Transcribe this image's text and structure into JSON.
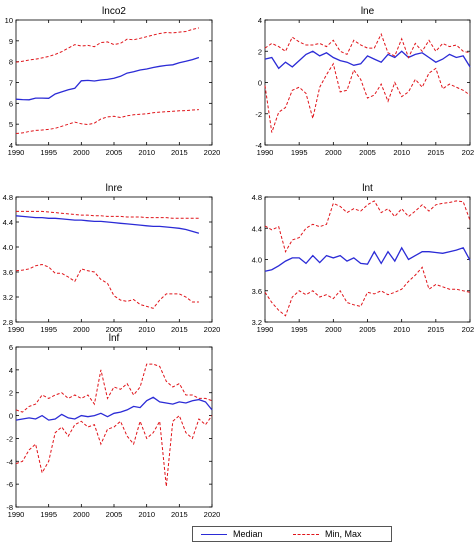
{
  "legend": {
    "median_label": "Median",
    "minmax_label": "Min, Max"
  },
  "colors": {
    "median": "#2b2bd6",
    "minmax": "#e0141a",
    "axis": "#000000"
  },
  "chart_data": [
    {
      "type": "line",
      "title": "lnco2",
      "x": [
        1990,
        1991,
        1992,
        1993,
        1994,
        1995,
        1996,
        1997,
        1998,
        1999,
        2000,
        2001,
        2002,
        2003,
        2004,
        2005,
        2006,
        2007,
        2008,
        2009,
        2010,
        2011,
        2012,
        2013,
        2014,
        2015,
        2016,
        2017,
        2018
      ],
      "xlim": [
        1990,
        2020
      ],
      "xticks": [
        1990,
        1995,
        2000,
        2005,
        2010,
        2015,
        2020
      ],
      "ylim": [
        4,
        10
      ],
      "yticks": [
        4,
        5,
        6,
        7,
        8,
        9,
        10
      ],
      "series": [
        {
          "name": "Median",
          "style": "solid",
          "values": [
            6.2,
            6.18,
            6.17,
            6.25,
            6.25,
            6.24,
            6.45,
            6.55,
            6.65,
            6.72,
            7.08,
            7.1,
            7.07,
            7.12,
            7.15,
            7.2,
            7.3,
            7.45,
            7.52,
            7.6,
            7.65,
            7.72,
            7.78,
            7.82,
            7.85,
            7.95,
            8.02,
            8.1,
            8.2
          ]
        },
        {
          "name": "Min, Max",
          "style": "dashed",
          "values": [
            7.98,
            8.02,
            8.08,
            8.12,
            8.18,
            8.25,
            8.35,
            8.48,
            8.65,
            8.82,
            8.75,
            8.78,
            8.72,
            8.92,
            8.95,
            8.82,
            8.88,
            9.08,
            9.05,
            9.12,
            9.2,
            9.28,
            9.35,
            9.4,
            9.38,
            9.42,
            9.45,
            9.55,
            9.62
          ]
        },
        {
          "name": "Min, Max",
          "style": "dashed",
          "values": [
            4.55,
            4.58,
            4.65,
            4.7,
            4.72,
            4.75,
            4.8,
            4.9,
            5.0,
            5.1,
            5.02,
            4.98,
            5.05,
            5.25,
            5.35,
            5.38,
            5.32,
            5.4,
            5.45,
            5.48,
            5.5,
            5.55,
            5.58,
            5.6,
            5.62,
            5.64,
            5.65,
            5.68,
            5.7
          ]
        }
      ]
    },
    {
      "type": "line",
      "title": "lne",
      "x": [
        1990,
        1991,
        1992,
        1993,
        1994,
        1995,
        1996,
        1997,
        1998,
        1999,
        2000,
        2001,
        2002,
        2003,
        2004,
        2005,
        2006,
        2007,
        2008,
        2009,
        2010,
        2011,
        2012,
        2013,
        2014,
        2015,
        2016,
        2017,
        2018,
        2019,
        2020
      ],
      "xlim": [
        1990,
        2020
      ],
      "xticks": [
        1990,
        1995,
        2000,
        2005,
        2010,
        2015,
        2020
      ],
      "ylim": [
        -4,
        4
      ],
      "yticks": [
        -4,
        -2,
        0,
        2,
        4
      ],
      "series": [
        {
          "name": "Median",
          "style": "solid",
          "values": [
            1.5,
            1.6,
            0.9,
            1.3,
            1.0,
            1.4,
            1.8,
            2.0,
            1.7,
            1.9,
            1.6,
            1.4,
            1.3,
            1.1,
            1.2,
            1.7,
            1.5,
            1.3,
            1.8,
            1.6,
            2.0,
            1.6,
            1.8,
            1.9,
            1.6,
            1.3,
            1.5,
            1.8,
            1.6,
            1.7,
            1.0
          ]
        },
        {
          "name": "Min, Max",
          "style": "dashed",
          "values": [
            2.2,
            2.5,
            2.3,
            2.0,
            2.9,
            2.6,
            2.4,
            2.4,
            2.5,
            2.3,
            2.7,
            2.0,
            1.8,
            2.7,
            2.4,
            2.2,
            2.2,
            3.1,
            1.9,
            1.7,
            2.8,
            1.6,
            2.5,
            2.0,
            2.7,
            2.0,
            2.5,
            2.3,
            2.4,
            2.0,
            1.9
          ]
        },
        {
          "name": "Min, Max",
          "style": "dashed",
          "values": [
            -0.2,
            -3.2,
            -1.9,
            -1.6,
            -0.5,
            -0.3,
            -0.7,
            -2.3,
            -0.3,
            0.5,
            1.2,
            -0.6,
            -0.5,
            0.8,
            0.2,
            -1.0,
            -0.8,
            -0.1,
            -1.2,
            0.0,
            -0.9,
            -0.6,
            0.2,
            -0.3,
            0.6,
            0.9,
            -0.4,
            -0.1,
            -0.3,
            -0.5,
            -0.8
          ]
        }
      ]
    },
    {
      "type": "line",
      "title": "lnre",
      "x": [
        1990,
        1991,
        1992,
        1993,
        1994,
        1995,
        1996,
        1997,
        1998,
        1999,
        2000,
        2001,
        2002,
        2003,
        2004,
        2005,
        2006,
        2007,
        2008,
        2009,
        2010,
        2011,
        2012,
        2013,
        2014,
        2015,
        2016,
        2017,
        2018
      ],
      "xlim": [
        1990,
        2020
      ],
      "xticks": [
        1990,
        1995,
        2000,
        2005,
        2010,
        2015,
        2020
      ],
      "ylim": [
        2.8,
        4.8
      ],
      "yticks": [
        2.8,
        3.2,
        3.6,
        4.0,
        4.4,
        4.8
      ],
      "series": [
        {
          "name": "Median",
          "style": "solid",
          "values": [
            4.5,
            4.49,
            4.48,
            4.47,
            4.47,
            4.46,
            4.46,
            4.45,
            4.44,
            4.43,
            4.43,
            4.42,
            4.41,
            4.41,
            4.4,
            4.39,
            4.38,
            4.37,
            4.36,
            4.35,
            4.34,
            4.33,
            4.33,
            4.32,
            4.31,
            4.3,
            4.28,
            4.25,
            4.22
          ]
        },
        {
          "name": "Min, Max",
          "style": "dashed",
          "values": [
            4.57,
            4.57,
            4.57,
            4.57,
            4.57,
            4.56,
            4.55,
            4.54,
            4.53,
            4.52,
            4.51,
            4.51,
            4.5,
            4.5,
            4.49,
            4.49,
            4.49,
            4.48,
            4.48,
            4.48,
            4.47,
            4.47,
            4.47,
            4.47,
            4.46,
            4.46,
            4.46,
            4.46,
            4.46
          ]
        },
        {
          "name": "Min, Max",
          "style": "dashed",
          "values": [
            3.62,
            3.63,
            3.65,
            3.7,
            3.72,
            3.68,
            3.58,
            3.58,
            3.52,
            3.45,
            3.65,
            3.62,
            3.6,
            3.48,
            3.42,
            3.22,
            3.15,
            3.13,
            3.16,
            3.08,
            3.05,
            3.02,
            3.15,
            3.25,
            3.25,
            3.25,
            3.2,
            3.12,
            3.12
          ]
        }
      ]
    },
    {
      "type": "line",
      "title": "lnt",
      "x": [
        1990,
        1991,
        1992,
        1993,
        1994,
        1995,
        1996,
        1997,
        1998,
        1999,
        2000,
        2001,
        2002,
        2003,
        2004,
        2005,
        2006,
        2007,
        2008,
        2009,
        2010,
        2011,
        2012,
        2013,
        2014,
        2015,
        2016,
        2017,
        2018,
        2019,
        2020
      ],
      "xlim": [
        1990,
        2020
      ],
      "xticks": [
        1990,
        1995,
        2000,
        2005,
        2010,
        2015,
        2020
      ],
      "ylim": [
        3.2,
        4.8
      ],
      "yticks": [
        3.2,
        3.6,
        4.0,
        4.4,
        4.8
      ],
      "series": [
        {
          "name": "Median",
          "style": "solid",
          "values": [
            3.85,
            3.87,
            3.92,
            3.98,
            4.02,
            4.02,
            3.95,
            4.05,
            3.96,
            4.05,
            4.02,
            4.05,
            3.98,
            4.02,
            3.95,
            3.94,
            4.1,
            3.95,
            4.1,
            3.98,
            4.15,
            4.0,
            4.05,
            4.1,
            4.1,
            4.09,
            4.08,
            4.1,
            4.12,
            4.15,
            3.99
          ]
        },
        {
          "name": "Min, Max",
          "style": "dashed",
          "values": [
            4.43,
            4.38,
            4.42,
            4.1,
            4.25,
            4.28,
            4.4,
            4.45,
            4.42,
            4.45,
            4.72,
            4.68,
            4.6,
            4.65,
            4.62,
            4.7,
            4.75,
            4.6,
            4.65,
            4.55,
            4.65,
            4.55,
            4.62,
            4.7,
            4.62,
            4.7,
            4.72,
            4.73,
            4.75,
            4.74,
            4.5
          ]
        },
        {
          "name": "Min, Max",
          "style": "dashed",
          "values": [
            3.58,
            3.45,
            3.35,
            3.28,
            3.52,
            3.6,
            3.55,
            3.6,
            3.52,
            3.55,
            3.5,
            3.6,
            3.45,
            3.42,
            3.4,
            3.58,
            3.56,
            3.6,
            3.55,
            3.58,
            3.62,
            3.72,
            3.8,
            3.9,
            3.62,
            3.68,
            3.65,
            3.62,
            3.62,
            3.6,
            3.58
          ]
        }
      ]
    },
    {
      "type": "line",
      "title": "lnf",
      "x": [
        1990,
        1991,
        1992,
        1993,
        1994,
        1995,
        1996,
        1997,
        1998,
        1999,
        2000,
        2001,
        2002,
        2003,
        2004,
        2005,
        2006,
        2007,
        2008,
        2009,
        2010,
        2011,
        2012,
        2013,
        2014,
        2015,
        2016,
        2017,
        2018,
        2019,
        2020
      ],
      "xlim": [
        1990,
        2020
      ],
      "xticks": [
        1990,
        1995,
        2000,
        2005,
        2010,
        2015,
        2020
      ],
      "ylim": [
        -8,
        6
      ],
      "yticks": [
        -8,
        -6,
        -4,
        -2,
        0,
        2,
        4,
        6
      ],
      "series": [
        {
          "name": "Median",
          "style": "solid",
          "values": [
            -0.4,
            -0.3,
            -0.2,
            -0.3,
            0.0,
            -0.4,
            -0.3,
            0.1,
            -0.2,
            -0.3,
            0.0,
            -0.1,
            0.0,
            0.2,
            -0.1,
            0.2,
            0.3,
            0.5,
            0.8,
            0.7,
            1.3,
            1.6,
            1.2,
            1.1,
            1.0,
            1.2,
            1.1,
            1.3,
            1.4,
            1.2,
            0.5
          ]
        },
        {
          "name": "Min, Max",
          "style": "dashed",
          "values": [
            0.5,
            0.3,
            0.8,
            1.0,
            1.8,
            1.5,
            1.8,
            2.0,
            1.5,
            1.8,
            1.5,
            1.8,
            1.0,
            4.0,
            1.5,
            2.5,
            2.3,
            2.8,
            1.8,
            2.5,
            4.5,
            4.5,
            4.3,
            3.0,
            2.5,
            2.8,
            1.8,
            1.8,
            1.5,
            1.5,
            1.3
          ]
        },
        {
          "name": "Min, Max",
          "style": "dashed",
          "values": [
            -4.2,
            -4.0,
            -3.0,
            -2.5,
            -5.0,
            -4.0,
            -1.5,
            -1.0,
            -1.8,
            -0.8,
            -0.5,
            -1.0,
            -0.8,
            -2.5,
            -1.2,
            -1.0,
            -0.5,
            -1.8,
            -2.5,
            -0.5,
            -2.0,
            -1.5,
            -0.5,
            -6.2,
            -0.5,
            0.0,
            -1.5,
            -2.0,
            -0.3,
            -0.8,
            0.0
          ]
        }
      ]
    }
  ]
}
